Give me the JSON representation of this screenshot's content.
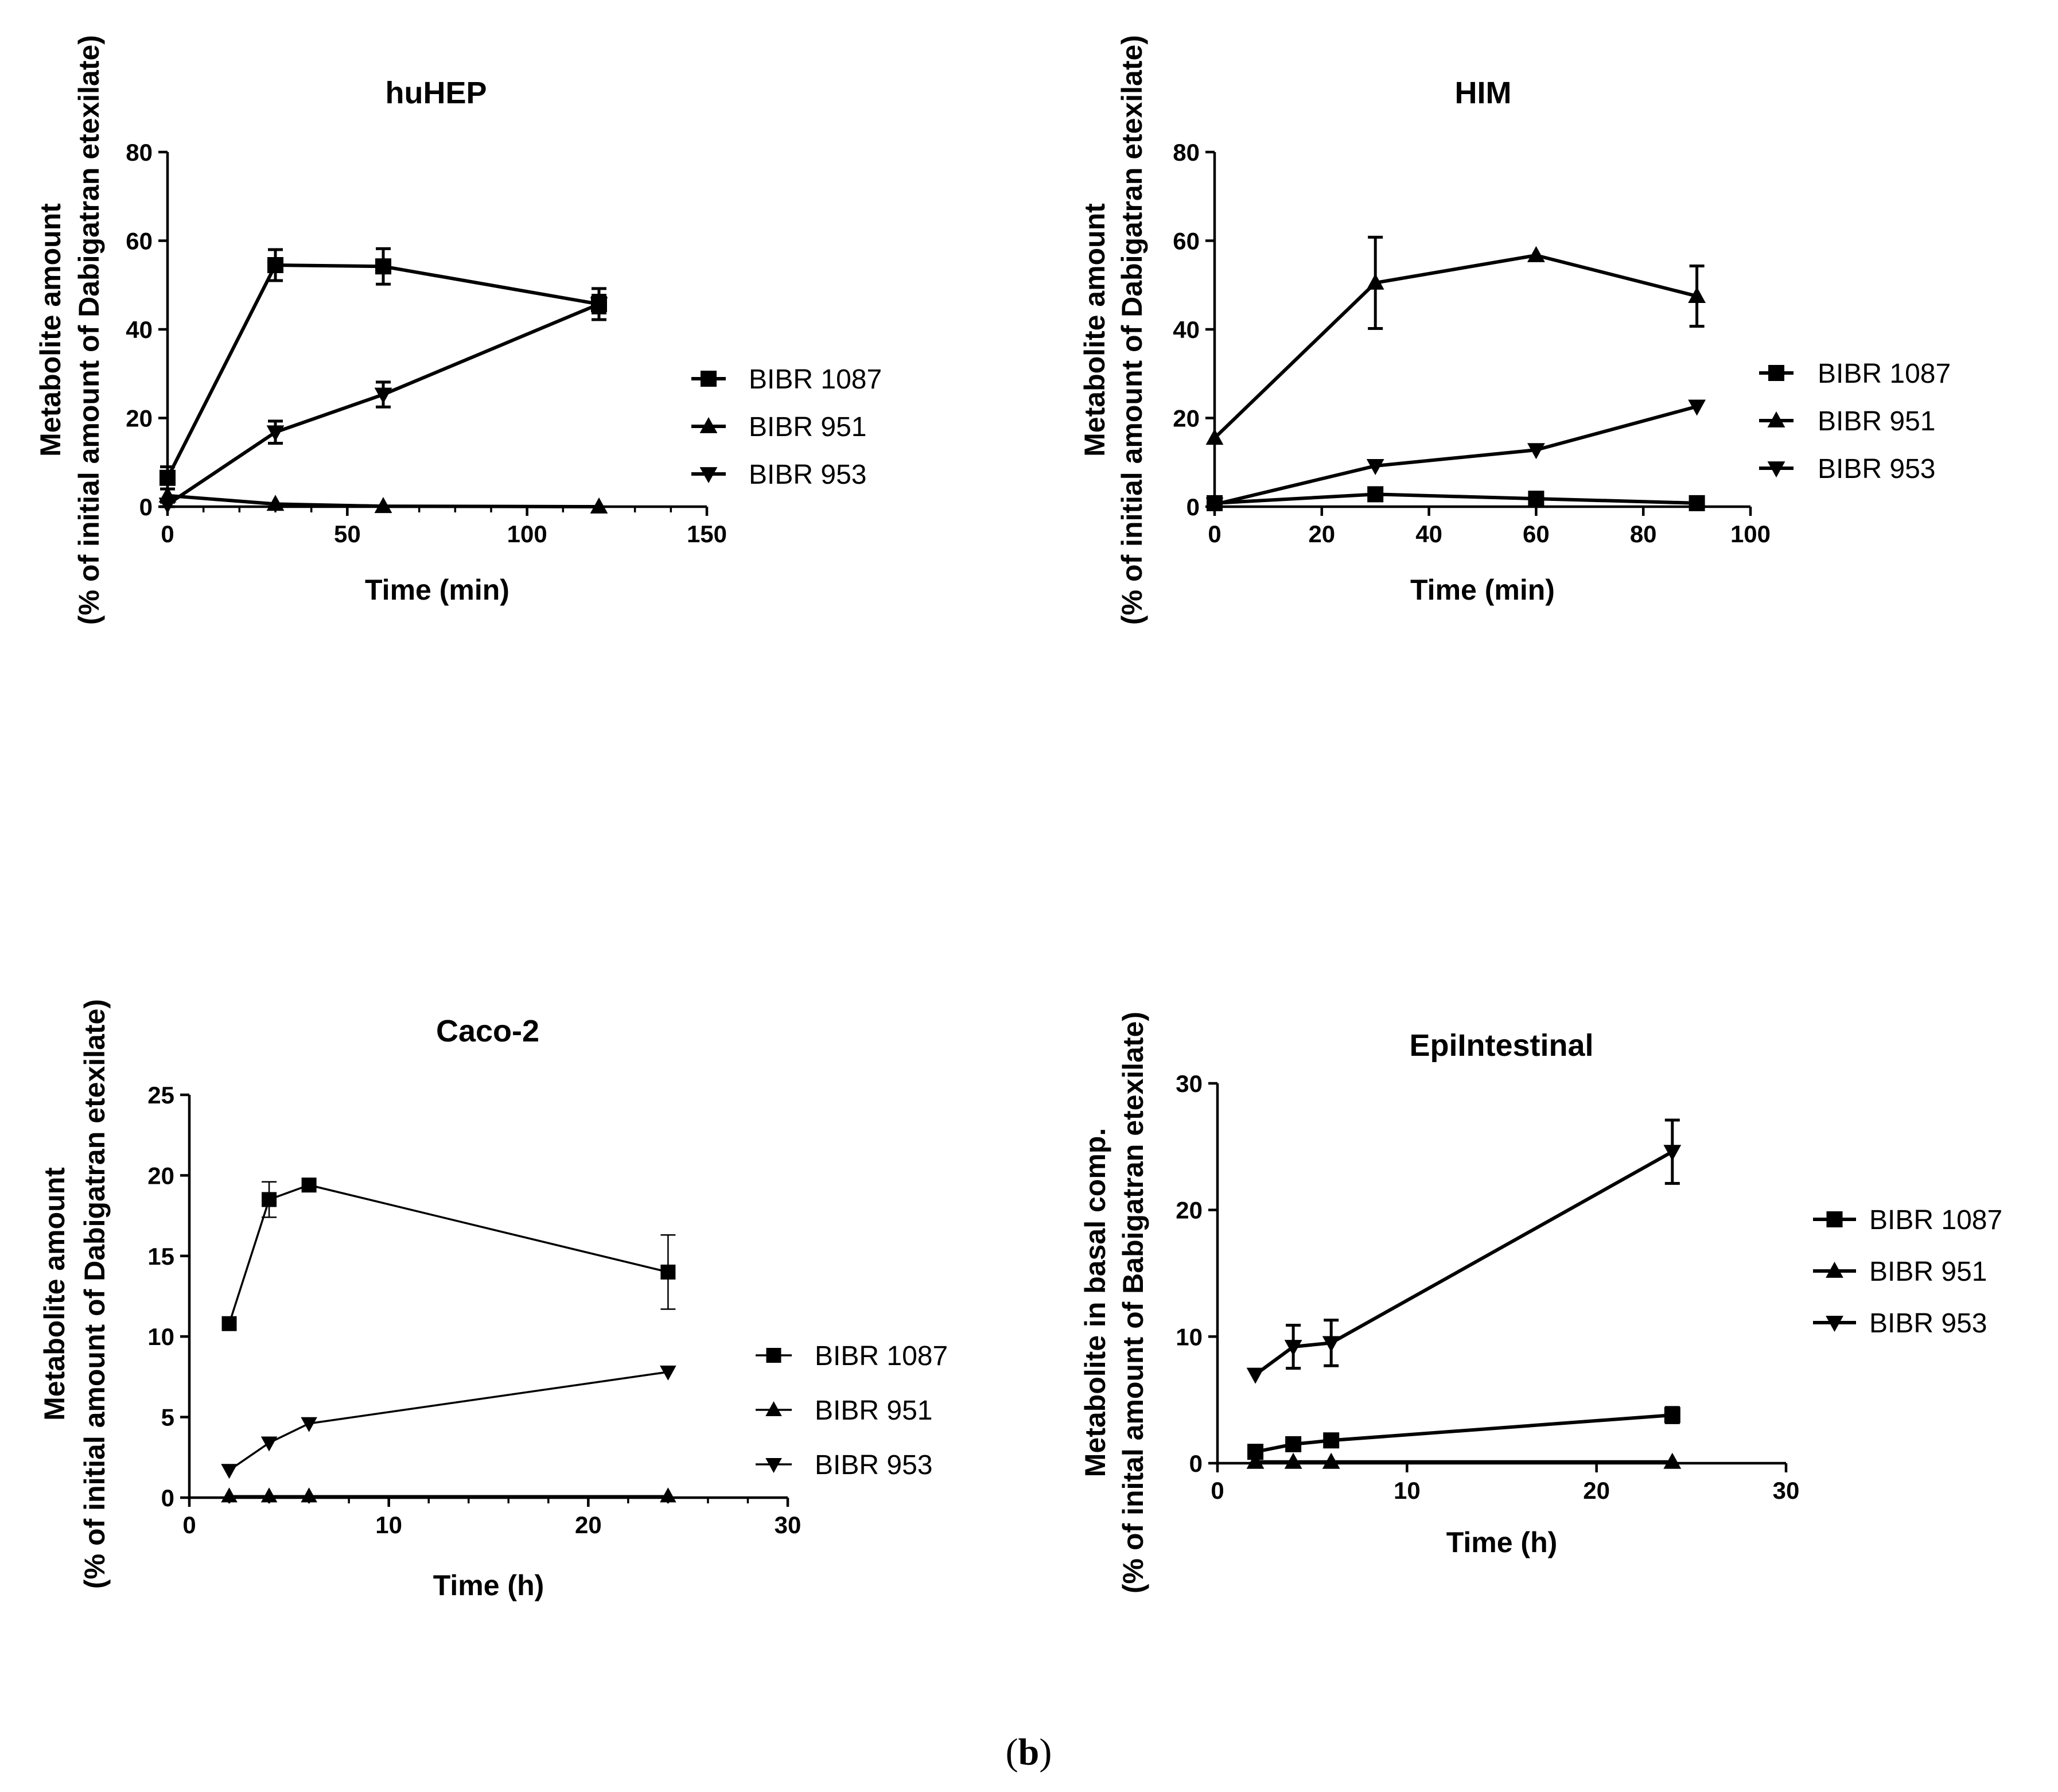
{
  "panel_label": {
    "open": "(",
    "letter": "b",
    "close": ")"
  },
  "chart_data": [
    {
      "type": "line",
      "title": "huHEP",
      "xlabel": "Time (min)",
      "ylabel": [
        "Metabolite amount",
        "(% of initial amount of Dabigatran etexilate)"
      ],
      "xlim": [
        0,
        150
      ],
      "ylim": [
        0,
        80
      ],
      "xticks": [
        0,
        50,
        100,
        150
      ],
      "yticks": [
        0,
        20,
        40,
        60,
        80
      ],
      "x_minor_ticks": true,
      "series": [
        {
          "name": "BIBR 1087",
          "marker": "square",
          "x": [
            0,
            30,
            60,
            120
          ],
          "values": [
            6.5,
            54.5,
            54.2,
            45.7
          ],
          "err": [
            2.5,
            3.5,
            4.0,
            3.5
          ]
        },
        {
          "name": "BIBR 951",
          "marker": "triangle-up",
          "x": [
            0,
            30,
            60,
            120
          ],
          "values": [
            2.5,
            0.6,
            0.1,
            0.0
          ],
          "err": [
            0,
            0,
            0,
            0
          ]
        },
        {
          "name": "BIBR 953",
          "marker": "triangle-down",
          "x": [
            0,
            30,
            60,
            120
          ],
          "values": [
            0.5,
            16.8,
            25.3,
            45.7
          ],
          "err": [
            0.5,
            2.5,
            2.8,
            2.0
          ]
        }
      ]
    },
    {
      "type": "line",
      "title": "HIM",
      "xlabel": "Time (min)",
      "ylabel": [
        "Metabolite amount",
        "(% of initial amount of Dabigatran etexilate)"
      ],
      "xlim": [
        0,
        100
      ],
      "ylim": [
        0,
        80
      ],
      "xticks": [
        0,
        20,
        40,
        60,
        80,
        100
      ],
      "yticks": [
        0,
        20,
        40,
        60,
        80
      ],
      "x_minor_ticks": false,
      "series": [
        {
          "name": "BIBR 1087",
          "marker": "square",
          "x": [
            0,
            30,
            60,
            90
          ],
          "values": [
            0.8,
            2.8,
            1.8,
            0.8
          ],
          "err": [
            0,
            0,
            0,
            0
          ]
        },
        {
          "name": "BIBR 951",
          "marker": "triangle-up",
          "x": [
            0,
            30,
            60,
            90
          ],
          "values": [
            15.5,
            50.5,
            56.7,
            47.5
          ],
          "err": [
            0,
            10.3,
            0,
            6.8
          ]
        },
        {
          "name": "BIBR 953",
          "marker": "triangle-down",
          "x": [
            0,
            30,
            60,
            90
          ],
          "values": [
            0.5,
            9.2,
            12.8,
            22.6
          ],
          "err": [
            0,
            0,
            0,
            0
          ]
        }
      ]
    },
    {
      "type": "line",
      "title": "Caco-2",
      "xlabel": "Time (h)",
      "ylabel": [
        "Metabolite amount",
        "(% of initial amount of Dabigatran etexilate)"
      ],
      "xlim": [
        0,
        30
      ],
      "ylim": [
        0,
        25
      ],
      "xticks": [
        0,
        10,
        20,
        30
      ],
      "yticks": [
        0,
        5,
        10,
        15,
        20,
        25
      ],
      "x_minor_ticks": true,
      "series": [
        {
          "name": "BIBR 1087",
          "marker": "square",
          "x": [
            2,
            4,
            6,
            24
          ],
          "values": [
            10.8,
            18.5,
            19.4,
            14.0
          ],
          "err": [
            0,
            1.1,
            0,
            2.3
          ]
        },
        {
          "name": "BIBR 951",
          "marker": "triangle-up",
          "x": [
            2,
            4,
            6,
            24
          ],
          "values": [
            0.1,
            0.1,
            0.1,
            0.1
          ],
          "err": [
            0,
            0,
            0,
            0
          ]
        },
        {
          "name": "BIBR 953",
          "marker": "triangle-down",
          "x": [
            2,
            4,
            6,
            24
          ],
          "values": [
            1.7,
            3.4,
            4.6,
            7.8
          ],
          "err": [
            0,
            0,
            0,
            0
          ]
        }
      ]
    },
    {
      "type": "line",
      "title": "EpiIntestinal",
      "xlabel": "Time (h)",
      "ylabel": [
        "Metabolite in basal comp.",
        "(% of inital amount of Babigatran etexilate)"
      ],
      "xlim": [
        0,
        30
      ],
      "ylim": [
        0,
        30
      ],
      "xticks": [
        0,
        10,
        20,
        30
      ],
      "yticks": [
        0,
        10,
        20,
        30
      ],
      "x_minor_ticks": false,
      "series": [
        {
          "name": "BIBR 1087",
          "marker": "square",
          "x": [
            2,
            4,
            6,
            24
          ],
          "values": [
            0.9,
            1.5,
            1.8,
            3.8
          ],
          "err": [
            0,
            0,
            0,
            0.6
          ]
        },
        {
          "name": "BIBR 951",
          "marker": "triangle-up",
          "x": [
            2,
            4,
            6,
            24
          ],
          "values": [
            0.1,
            0.1,
            0.1,
            0.1
          ],
          "err": [
            0,
            0,
            0,
            0
          ]
        },
        {
          "name": "BIBR 953",
          "marker": "triangle-down",
          "x": [
            2,
            4,
            6,
            24
          ],
          "values": [
            7.0,
            9.2,
            9.5,
            24.6
          ],
          "err": [
            0,
            1.7,
            1.8,
            2.5
          ]
        }
      ]
    }
  ]
}
